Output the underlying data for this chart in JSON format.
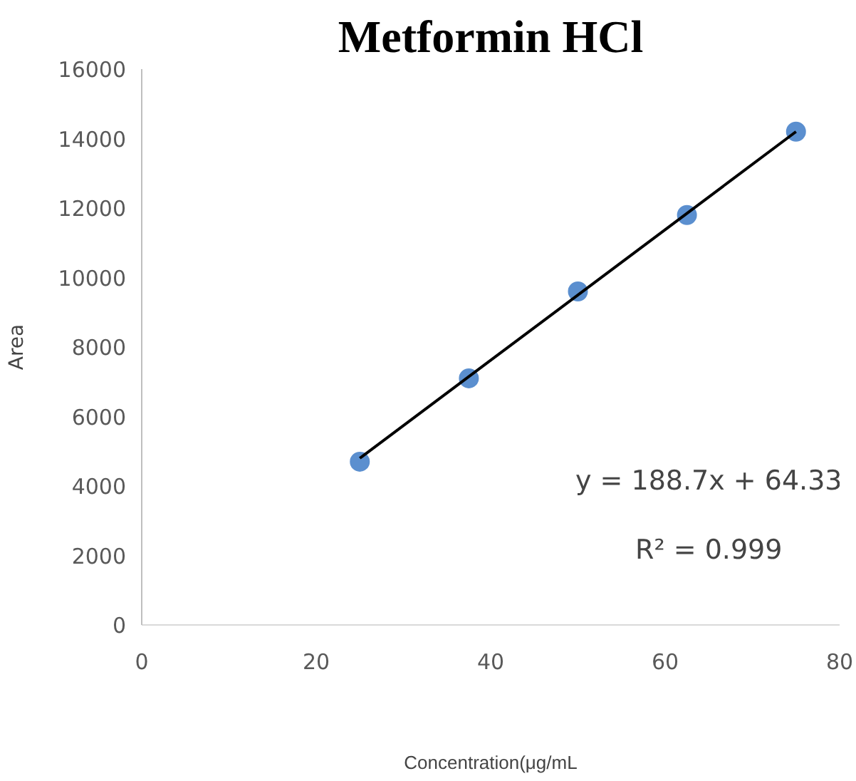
{
  "chart_data": {
    "type": "scatter",
    "title": "Metformin HCl",
    "xlabel": "Concentration(μg/mL",
    "ylabel": "Area",
    "x": [
      25,
      37.5,
      50,
      62.5,
      75
    ],
    "series": [
      {
        "type": "scatter",
        "color": "#5b8fcf",
        "values": [
          4700,
          7100,
          9600,
          11800,
          14200
        ],
        "marker": "circle"
      },
      {
        "type": "line",
        "color": "#000000",
        "x": [
          25,
          75
        ],
        "values": [
          4800,
          14200
        ],
        "marker": "none",
        "line_style": "solid"
      }
    ],
    "xlim": [
      0,
      80
    ],
    "xticks": [
      0,
      20,
      40,
      60,
      80
    ],
    "ylim": [
      0,
      16000
    ],
    "yticks": [
      0,
      2000,
      4000,
      6000,
      8000,
      10000,
      12000,
      14000,
      16000
    ],
    "grid": false,
    "annotations": [
      "y = 188.7x + 64.33",
      "R² = 0.999"
    ]
  }
}
